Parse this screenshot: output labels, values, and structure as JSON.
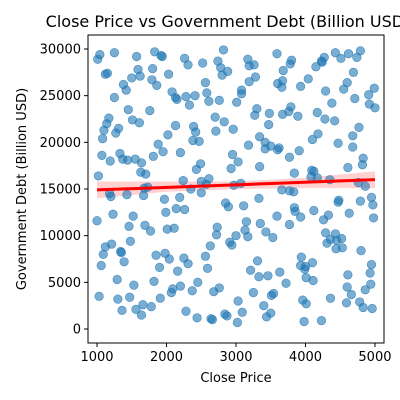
{
  "chart_data": {
    "type": "scatter",
    "title": "Close Price vs Government Debt (Billion USD)",
    "xlabel": "Close Price",
    "ylabel": "Government Debt (Billion USD)",
    "xlim": [
      870,
      5130
    ],
    "ylim": [
      -1500,
      31500
    ],
    "xticks": [
      1000,
      2000,
      3000,
      4000,
      5000
    ],
    "xtick_labels": [
      "1000",
      "2000",
      "3000",
      "4000",
      "5000"
    ],
    "yticks": [
      0,
      5000,
      10000,
      15000,
      20000,
      25000,
      30000
    ],
    "ytick_labels": [
      "0",
      "5000",
      "10000",
      "15000",
      "20000",
      "25000",
      "30000"
    ],
    "grid": false,
    "legend": "none",
    "colors": {
      "points": "#1f77b4",
      "regression_line": "#ff0000",
      "confidence_band": "#ff9999"
    },
    "regression": {
      "x": [
        1000,
        5000
      ],
      "y": [
        14900,
        16000
      ]
    },
    "confidence_band": {
      "x": [
        1000,
        2000,
        3000,
        4000,
        5000
      ],
      "lower": [
        14000,
        14700,
        15000,
        15100,
        15100
      ],
      "upper": [
        15800,
        15800,
        15800,
        16200,
        16900
      ]
    },
    "points_note_approximate_sample": true,
    "x": [
      1010,
      1060,
      1100,
      1180,
      1250,
      1300,
      1370,
      1420,
      1480,
      1520,
      1590,
      1640,
      1700,
      1760,
      1820,
      1880,
      1940,
      2010,
      2070,
      2130,
      2190,
      2250,
      2310,
      2380,
      2440,
      2500,
      2560,
      2630,
      2700,
      2760,
      2820,
      2890,
      2950,
      3020,
      3080,
      3150,
      3210,
      3280,
      3340,
      3400,
      3470,
      3530,
      3590,
      3660,
      3720,
      3790,
      3850,
      3910,
      3980,
      4040,
      4100,
      4170,
      4230,
      4290,
      4360,
      4420,
      4480,
      4550,
      4610,
      4680,
      4740,
      4800,
      4860,
      4920,
      4980,
      1030,
      1120,
      1210,
      1330,
      1450,
      1560,
      1670,
      1790,
      1900,
      2020,
      2140,
      2260,
      2370,
      2490,
      2610,
      2720,
      2840,
      2960,
      3070,
      3190,
      3310,
      3420,
      3540,
      3660,
      3770,
      3890,
      4010,
      4120,
      4240,
      4360,
      4470,
      4590,
      4710,
      4830,
      4950,
      1080,
      1230,
      1380,
      1530,
      1680,
      1830,
      1980,
      2130,
      2280,
      2430,
      2580,
      2730,
      2880,
      3030,
      3180,
      3330,
      3480,
      3630,
      3780,
      3930,
      4080,
      4230,
      4380,
      4530,
      4680,
      4830,
      4970,
      1150,
      1290,
      1440,
      1610,
      1770,
      1920,
      2090,
      2240,
      2410,
      2560,
      2710,
      2870,
      3030,
      3190,
      3350,
      3510,
      3670,
      3830,
      3990,
      4150,
      4310,
      4470,
      4630,
      4790,
      4940,
      1020,
      1170,
      1340,
      1500,
      1660,
      1810,
      1970,
      2150,
      2310,
      2470,
      2640,
      2800,
      2970,
      3130,
      3300,
      3460,
      3620,
      3800,
      3960,
      4120,
      4290,
      4450,
      4610,
      4770,
      4930,
      1040,
      1200,
      1360,
      1510,
      1690,
      1860,
      2040,
      2200,
      2350,
      2520,
      2680,
      2850,
      3010,
      3170,
      3340,
      3500,
      3680,
      3840,
      4000,
      4170,
      4330,
      4510,
      4660,
      4820,
      4990,
      1090,
      1270,
      1430,
      1620,
      1780,
      1950,
      2110,
      2280,
      2450,
      2610,
      2780,
      2940,
      3110,
      3270,
      3440,
      3600,
      3770,
      3940,
      4100,
      4260,
      4430,
      4600,
      4760,
      4910,
      1120,
      1310,
      1470,
      1640,
      1800,
      1990,
      2160,
      2330,
      2500,
      2660,
      2830,
      3000,
      3170,
      3330,
      3500,
      3670,
      3840,
      4010,
      4180,
      4350,
      4520,
      4690,
      4860,
      5000,
      1000,
      1190,
      1390,
      1570,
      1730,
      1910,
      2080,
      2260,
      2420,
      2590,
      2760,
      2930,
      3090,
      3260,
      3430,
      3600,
      3770,
      3930,
      4110,
      4280,
      4440,
      4620,
      4790,
      4960,
      1070,
      1250,
      1460,
      1630,
      1850,
      2030,
      2200,
      2390,
      2570,
      2740,
      2910,
      3080,
      3250,
      3420,
      3590,
      3760,
      3930,
      4090,
      4270,
      4430,
      4600,
      4780,
      4950,
      1140,
      1350,
      1550
    ],
    "y": [
      28900,
      6800,
      21300,
      14500,
      29600,
      3200,
      18200,
      25600,
      9400,
      12100,
      27800,
      1500,
      16600,
      23400,
      5100,
      19800,
      29200,
      10700,
      3900,
      24800,
      14100,
      7600,
      28300,
      20200,
      1200,
      15800,
      26400,
      8900,
      22700,
      4400,
      29900,
      13100,
      18700,
      700,
      25200,
      11500,
      6300,
      27000,
      17400,
      2500,
      21900,
      9800,
      29500,
      14900,
      4900,
      23800,
      12600,
      19100,
      800,
      26800,
      7100,
      16200,
      28700,
      10300,
      3300,
      22300,
      13800,
      25700,
      5800,
      19500,
      29100,
      8400,
      15300,
      24100,
      11900,
      3500,
      27300,
      9100,
      18800,
      23500,
      2100,
      14300,
      26700,
      6600,
      20800,
      12900,
      29000,
      4100,
      17700,
      24400,
      10100,
      1600,
      21400,
      15600,
      28200,
      7300,
      19300,
      3800,
      25900,
      11200,
      22800,
      5500,
      16900,
      28600,
      9600,
      13600,
      2800,
      24700,
      18300,
      6900,
      20400,
      12300,
      26200,
      4700,
      15100,
      29700,
      8100,
      21800,
      1900,
      17100,
      25300,
      10900,
      27600,
      3000,
      19700,
      14000,
      23100,
      6100,
      28400,
      12000,
      16300,
      900,
      24200,
      8700,
      20700,
      2300,
      13300,
      27400,
      5300,
      18100,
      22100,
      10500,
      29300,
      4300,
      15900,
      25000,
      7800,
      21200,
      1400,
      17900,
      26500,
      11300,
      3600,
      23000,
      14700,
      6400,
      28100,
      9200,
      19900,
      12400,
      29800,
      4800,
      16400,
      22600,
      8300,
      26900,
      2600,
      18500,
      13900,
      24600,
      7000,
      20100,
      1100,
      27200,
      15400,
      10600,
      23600,
      5700,
      19400,
      28800,
      3100,
      12700,
      25500,
      9500,
      17300,
      21600,
      6000,
      29400,
      14200,
      2000,
      22400,
      11100,
      26100,
      7500,
      18900,
      15000,
      28500,
      4000,
      13500,
      24300,
      9900,
      20600,
      1700,
      27700,
      16700,
      6700,
      23200,
      12200,
      29000,
      3700,
      17600,
      25800,
      8000,
      21000,
      14400,
      27100,
      2400,
      19000,
      10800,
      24900,
      5000,
      16100,
      28000,
      9000,
      13200,
      22900,
      1300,
      26300,
      18400,
      7700,
      20300,
      11700,
      29600,
      4500,
      15700,
      25100,
      8800,
      21500,
      3400,
      17800,
      27900,
      12500,
      6200,
      24000,
      14600,
      1000,
      22200,
      10000,
      28900,
      5600,
      19600,
      26600,
      13000,
      2700,
      20900,
      16000,
      9700,
      27500,
      4200,
      23700,
      11600,
      18000,
      7200,
      29200,
      15200,
      3300,
      25400,
      12800,
      21100,
      6500,
      24500,
      17200,
      1800,
      28300,
      10400,
      19200,
      14800,
      26000,
      5200,
      22500,
      8600,
      29500,
      13700,
      2200,
      18600,
      24800,
      11000,
      16800,
      7900,
      27300,
      4600,
      21700,
      15500,
      28700,
      9300,
      25600,
      3900,
      20000,
      12100,
      23300,
      6800,
      17000,
      29100,
      10200,
      26400,
      2900,
      14100,
      22000,
      8200,
      18200
    ]
  }
}
